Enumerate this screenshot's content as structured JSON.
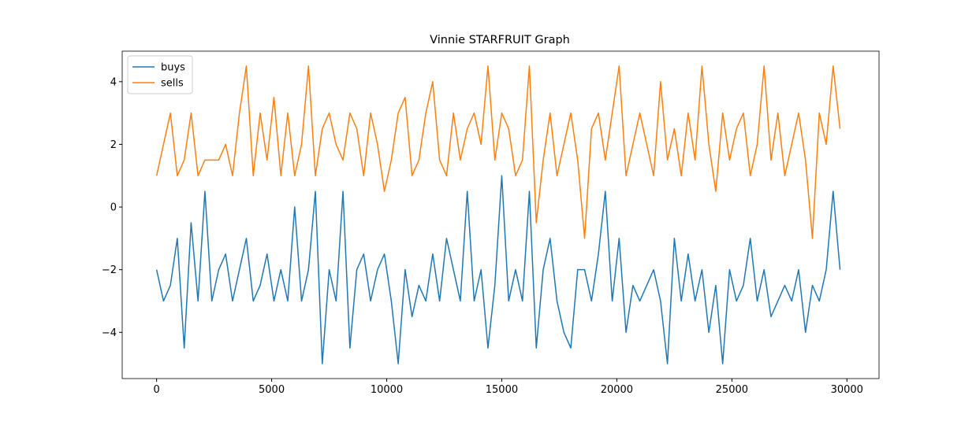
{
  "chart_data": {
    "type": "line",
    "title": "Vinnie STARFRUIT Graph",
    "x": [
      0,
      300,
      600,
      900,
      1200,
      1500,
      1800,
      2100,
      2400,
      2700,
      3000,
      3300,
      3600,
      3900,
      4200,
      4500,
      4800,
      5100,
      5400,
      5700,
      6000,
      6300,
      6600,
      6900,
      7200,
      7500,
      7800,
      8100,
      8400,
      8700,
      9000,
      9300,
      9600,
      9900,
      10200,
      10500,
      10800,
      11100,
      11400,
      11700,
      12000,
      12300,
      12600,
      12900,
      13200,
      13500,
      13800,
      14100,
      14400,
      14700,
      15000,
      15300,
      15600,
      15900,
      16200,
      16500,
      16800,
      17100,
      17400,
      17700,
      18000,
      18300,
      18600,
      18900,
      19200,
      19500,
      19800,
      20100,
      20400,
      20700,
      21000,
      21300,
      21600,
      21900,
      22200,
      22500,
      22800,
      23100,
      23400,
      23700,
      24000,
      24300,
      24600,
      24900,
      25200,
      25500,
      25800,
      26100,
      26400,
      26700,
      27000,
      27300,
      27600,
      27900,
      28200,
      28500,
      28800,
      29100,
      29400,
      29700
    ],
    "series": [
      {
        "name": "buys",
        "color": "#1f77b4",
        "values": [
          -2,
          -3,
          -2.5,
          -1,
          -4.5,
          -0.5,
          -3,
          0.5,
          -3,
          -2,
          -1.5,
          -3,
          -2,
          -1,
          -3,
          -2.5,
          -1.5,
          -3,
          -2,
          -3,
          0,
          -3,
          -2,
          0.5,
          -5,
          -2,
          -3,
          0.5,
          -4.5,
          -2,
          -1.5,
          -3,
          -2,
          -1.5,
          -3,
          -5,
          -2,
          -3.5,
          -2.5,
          -3,
          -1.5,
          -3,
          -1,
          -2,
          -3,
          0.5,
          -3,
          -2,
          -4.5,
          -2.5,
          1,
          -3,
          -2,
          -3,
          0.5,
          -4.5,
          -2,
          -1,
          -3,
          -4,
          -4.5,
          -2,
          -2,
          -3,
          -1.5,
          0.5,
          -3,
          -1,
          -4,
          -2.5,
          -3,
          -2.5,
          -2,
          -3,
          -5,
          -1,
          -3,
          -1.5,
          -3,
          -2,
          -4,
          -2.5,
          -5,
          -2,
          -3,
          -2.5,
          -1,
          -3,
          -2,
          -3.5,
          -3,
          -2.5,
          -3,
          -2,
          -4,
          -2.5,
          -3,
          -2,
          0.5,
          -2
        ]
      },
      {
        "name": "sells",
        "color": "#ff7f0e",
        "values": [
          1,
          2,
          3,
          1,
          1.5,
          3,
          1,
          1.5,
          1.5,
          1.5,
          2,
          1,
          3,
          4.5,
          1,
          3,
          1.5,
          3.5,
          1,
          3,
          1,
          2,
          4.5,
          1,
          2.5,
          3,
          2,
          1.5,
          3,
          2.5,
          1,
          3,
          2,
          0.5,
          1.5,
          3,
          3.5,
          1,
          1.5,
          3,
          4,
          1.5,
          1,
          3,
          1.5,
          2.5,
          3,
          2,
          4.5,
          1.5,
          3,
          2.5,
          1,
          1.5,
          4.5,
          -0.5,
          1.5,
          3,
          1,
          2,
          3,
          1.5,
          -1,
          2.5,
          3,
          1.5,
          3,
          4.5,
          1,
          2,
          3,
          2,
          1,
          4,
          1.5,
          2.5,
          1,
          3,
          1.5,
          4.5,
          2,
          0.5,
          3,
          1.5,
          2.5,
          3,
          1,
          2,
          4.5,
          1.5,
          3,
          1,
          2,
          3,
          1.5,
          -1,
          3,
          2,
          4.5,
          2.5
        ]
      }
    ],
    "xlim": [
      -1495,
      31395
    ],
    "ylim": [
      -5.475,
      4.975
    ],
    "xticks": [
      0,
      5000,
      10000,
      15000,
      20000,
      25000,
      30000
    ],
    "yticks": [
      {
        "value": -4,
        "label": "−4"
      },
      {
        "value": -2,
        "label": "−2"
      },
      0,
      2,
      4
    ],
    "legend": "upper left",
    "grid": false
  }
}
